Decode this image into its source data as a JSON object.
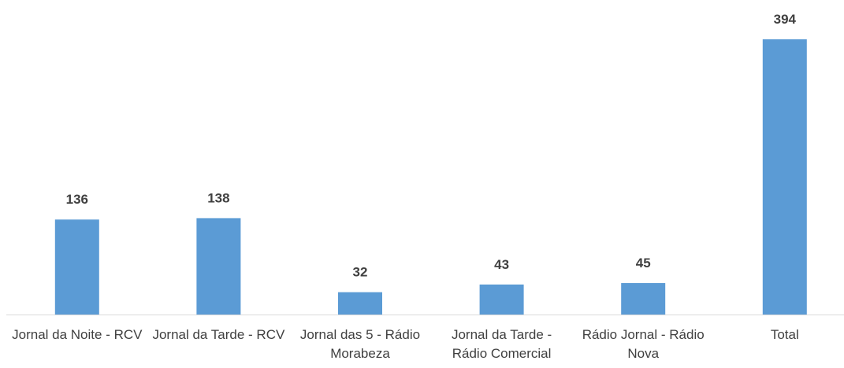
{
  "chart_data": {
    "type": "bar",
    "categories": [
      "Jornal da Noite - RCV",
      "Jornal da Tarde - RCV",
      "Jornal das 5 - Rádio Morabeza",
      "Jornal da Tarde - Rádio Comercial",
      "Rádio Jornal - Rádio Nova",
      "Total"
    ],
    "values": [
      136,
      138,
      32,
      43,
      45,
      394
    ],
    "color": "#5b9bd5"
  }
}
